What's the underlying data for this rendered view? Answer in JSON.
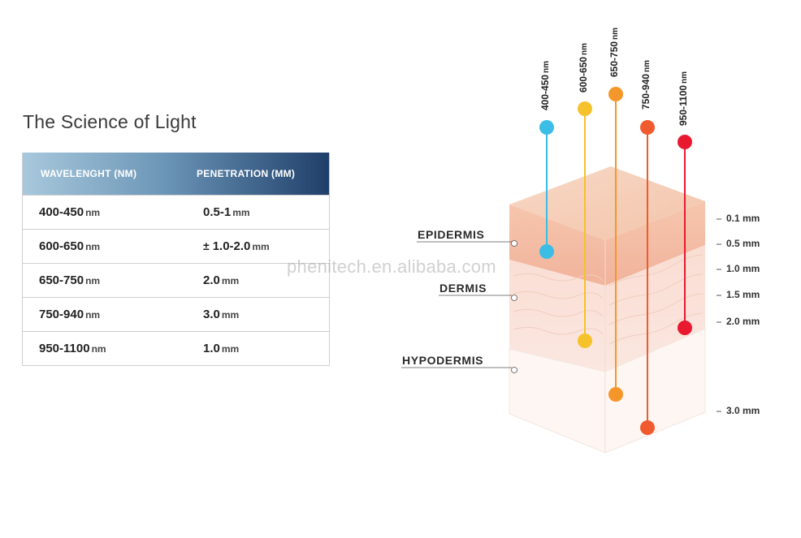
{
  "title": "The Science of Light",
  "table": {
    "headers": [
      "WAVELENGHT (NM)",
      "PENETRATION (MM)"
    ],
    "rows": [
      {
        "wavelength": "400-450",
        "wl_unit": "nm",
        "prefix": "",
        "penetration": "0.5-1",
        "pen_unit": "mm"
      },
      {
        "wavelength": "600-650",
        "wl_unit": "nm",
        "prefix": "±",
        "penetration": "1.0-2.0",
        "pen_unit": "mm"
      },
      {
        "wavelength": "650-750",
        "wl_unit": "nm",
        "prefix": "",
        "penetration": "2.0",
        "pen_unit": "mm"
      },
      {
        "wavelength": "750-940",
        "wl_unit": "nm",
        "prefix": "",
        "penetration": "3.0",
        "pen_unit": "mm"
      },
      {
        "wavelength": "950-1100",
        "wl_unit": "nm",
        "prefix": "",
        "penetration": "1.0",
        "pen_unit": "mm"
      }
    ]
  },
  "layers": {
    "epidermis": "EPIDERMIS",
    "dermis": "DERMIS",
    "hypodermis": "HYPODERMIS"
  },
  "depths": [
    "0.1 mm",
    "0.5 mm",
    "1.0 mm",
    "1.5 mm",
    "2.0 mm",
    "3.0 mm"
  ],
  "wavelength_labels": [
    {
      "range": "400-450",
      "unit": "nm",
      "color": "#3bbde6"
    },
    {
      "range": "600-650",
      "unit": "nm",
      "color": "#f5c22b"
    },
    {
      "range": "650-750",
      "unit": "nm",
      "color": "#f5962b"
    },
    {
      "range": "750-940",
      "unit": "nm",
      "color": "#f05a2f"
    },
    {
      "range": "950-1100",
      "unit": "nm",
      "color": "#e8192f"
    }
  ],
  "watermark": "phenitech.en.alibaba.com"
}
